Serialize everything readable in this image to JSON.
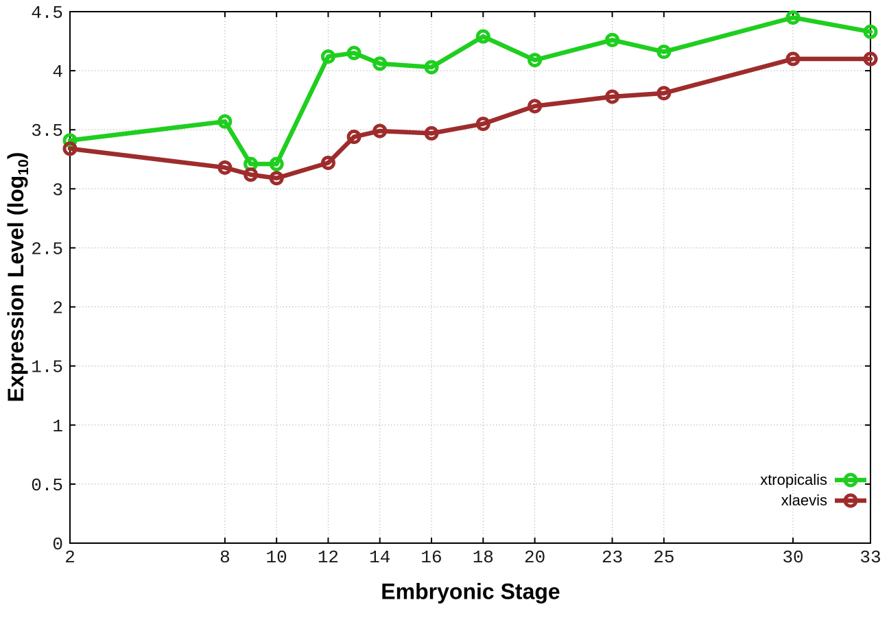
{
  "figure": {
    "background": "#ffffff",
    "grid_color": "#b3b3b3",
    "border_color": "#000000",
    "tick_label_color": "#1a1a1a"
  },
  "chart_data": {
    "type": "line",
    "title": "",
    "xlabel": "Embryonic Stage",
    "ylabel_prefix": "Expression Level (log",
    "ylabel_sub": "10",
    "ylabel_suffix": ")",
    "xlim": [
      2,
      33
    ],
    "ylim": [
      0,
      4.5
    ],
    "grid": true,
    "legend_position": "inside-bottom-right",
    "x": [
      2,
      8,
      9,
      10,
      12,
      13,
      14,
      16,
      18,
      20,
      23,
      25,
      30,
      33
    ],
    "xticks": [
      2,
      8,
      10,
      12,
      14,
      16,
      18,
      20,
      23,
      25,
      30,
      33
    ],
    "yticks": [
      0,
      0.5,
      1,
      1.5,
      2,
      2.5,
      3,
      3.5,
      4,
      4.5
    ],
    "series": [
      {
        "name": "xtropicalis",
        "color": "#1fce1f",
        "marker": "open-circle",
        "values": [
          3.41,
          3.57,
          3.21,
          3.21,
          4.12,
          4.15,
          4.06,
          4.03,
          4.29,
          4.09,
          4.26,
          4.16,
          4.45,
          4.33
        ]
      },
      {
        "name": "xlaevis",
        "color": "#9e2c2c",
        "marker": "open-circle",
        "values": [
          3.34,
          3.18,
          3.12,
          3.09,
          3.22,
          3.44,
          3.49,
          3.47,
          3.55,
          3.7,
          3.78,
          3.81,
          4.1,
          4.1
        ]
      }
    ]
  }
}
